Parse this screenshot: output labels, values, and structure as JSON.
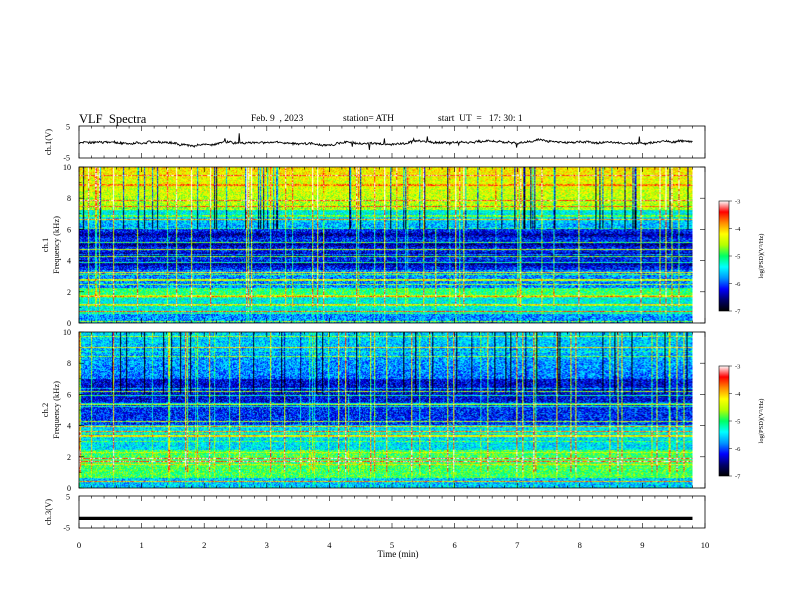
{
  "header": {
    "title": "VLF  Spectra",
    "date": "Feb. 9  , 2023",
    "station": "station= ATH",
    "start": "start  UT  =   17: 30: 1"
  },
  "colors": {
    "colormap": [
      "#000000",
      "#00006a",
      "#0000ff",
      "#0096ff",
      "#00ffff",
      "#00ff64",
      "#b4ff00",
      "#ffff00",
      "#ff8c00",
      "#ff0000",
      "#ffffff"
    ],
    "trace": "#000000",
    "axis": "#000000"
  },
  "chart_data": [
    {
      "type": "line",
      "ylabel": "ch.1(V)",
      "ylim": [
        -5,
        5
      ],
      "yticks": [
        "5",
        "-5"
      ],
      "xlim": [
        0,
        10
      ],
      "description_values": {
        "baseline_v": -0.2,
        "spread_v": 1.0
      }
    },
    {
      "type": "heatmap",
      "ylabel_lines": [
        "ch.1",
        "Frequency  (kHz)"
      ],
      "xlim": [
        0,
        10
      ],
      "ylim": [
        0,
        10
      ],
      "yticks": [
        "0",
        "2",
        "4",
        "6",
        "8",
        "10"
      ],
      "data_extent_min": 9.8,
      "colorbar": {
        "label": "log(PSD)(V²/Hz)",
        "range": [
          -7,
          -3
        ],
        "ticks": [
          "-3",
          "-4",
          "-5",
          "-6",
          "-7"
        ]
      }
    },
    {
      "type": "heatmap",
      "ylabel_lines": [
        "ch.2",
        "Frequency  (kHz)"
      ],
      "xlim": [
        0,
        10
      ],
      "ylim": [
        0,
        10
      ],
      "yticks": [
        "0",
        "2",
        "4",
        "6",
        "8",
        "10"
      ],
      "data_extent_min": 9.8,
      "colorbar": {
        "label": "log(PSD)(V²/Hz)",
        "range": [
          -7,
          -3
        ],
        "ticks": [
          "-3",
          "-4",
          "-5",
          "-6",
          "-7"
        ]
      }
    },
    {
      "type": "line",
      "ylabel": "ch.3(V)",
      "ylim": [
        -5,
        5
      ],
      "yticks": [
        "5",
        "-5"
      ],
      "xlim": [
        0,
        10
      ],
      "xticks": [
        "0",
        "1",
        "2",
        "3",
        "4",
        "5",
        "6",
        "7",
        "8",
        "9",
        "10"
      ],
      "xlabel": "Time  (min)",
      "constant_value_v": -2.0,
      "data_extent_min": 9.8
    }
  ]
}
